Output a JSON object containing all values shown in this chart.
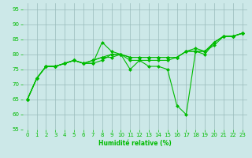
{
  "xlabel": "Humidité relative (%)",
  "xlim": [
    -0.5,
    23.5
  ],
  "ylim": [
    55,
    97
  ],
  "yticks": [
    55,
    60,
    65,
    70,
    75,
    80,
    85,
    90,
    95
  ],
  "xticks": [
    0,
    1,
    2,
    3,
    4,
    5,
    6,
    7,
    8,
    9,
    10,
    11,
    12,
    13,
    14,
    15,
    16,
    17,
    18,
    19,
    20,
    21,
    22,
    23
  ],
  "bg_color": "#cce8e8",
  "grid_color": "#99bbbb",
  "line_color": "#00bb00",
  "lines": [
    [
      65,
      72,
      76,
      76,
      77,
      78,
      77,
      77,
      84,
      81,
      80,
      75,
      78,
      76,
      76,
      75,
      63,
      60,
      81,
      80,
      84,
      86,
      86,
      87
    ],
    [
      65,
      72,
      76,
      76,
      77,
      78,
      77,
      77,
      78,
      80,
      80,
      78,
      78,
      78,
      78,
      78,
      79,
      81,
      81,
      81,
      84,
      86,
      86,
      87
    ],
    [
      65,
      72,
      76,
      76,
      77,
      78,
      77,
      78,
      79,
      79,
      80,
      79,
      79,
      79,
      79,
      79,
      79,
      81,
      82,
      81,
      83,
      86,
      86,
      87
    ],
    [
      65,
      72,
      76,
      76,
      77,
      78,
      77,
      78,
      79,
      80,
      80,
      79,
      79,
      79,
      79,
      79,
      79,
      81,
      81,
      81,
      84,
      86,
      86,
      87
    ]
  ]
}
